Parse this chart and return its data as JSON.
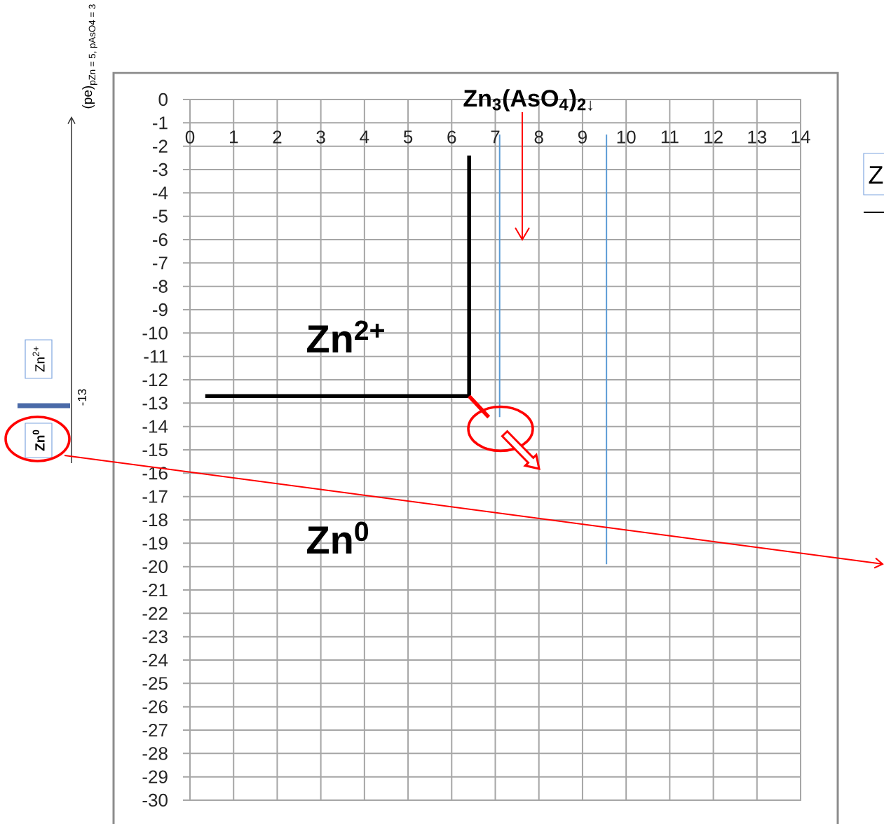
{
  "chart_data": {
    "type": "line",
    "xlim": [
      0,
      14
    ],
    "ylim": [
      -30,
      0
    ],
    "xticks": [
      0,
      1,
      2,
      3,
      4,
      5,
      6,
      7,
      8,
      9,
      10,
      11,
      12,
      13,
      14
    ],
    "yticks": [
      0,
      -1,
      -2,
      -3,
      -4,
      -5,
      -6,
      -7,
      -8,
      -9,
      -10,
      -11,
      -12,
      -13,
      -14,
      -15,
      -16,
      -17,
      -18,
      -19,
      -20,
      -21,
      -22,
      -23,
      -24,
      -25,
      -26,
      -27,
      -28,
      -29,
      -30
    ],
    "grid": true,
    "line_style": "solid",
    "series": [
      {
        "color": "#000000",
        "x": [
          0.35,
          6.4,
          6.4
        ],
        "values": [
          -12.7,
          -12.7,
          -2.4
        ]
      },
      {
        "color": "#ff0000",
        "x": [
          6.4,
          6.85
        ],
        "values": [
          -12.7,
          -13.6
        ]
      },
      {
        "color": "#5b9bd5",
        "x": [
          7.1,
          7.1
        ],
        "values": [
          -1.5,
          -13.6
        ]
      },
      {
        "color": "#5b9bd5",
        "x": [
          9.55,
          9.55
        ],
        "values": [
          -1.5,
          -19.9
        ]
      }
    ],
    "annotations": [
      "\\text{(pe)}_{\\text{pZn = 5, pAsO4 = 3}}",
      "Zn$_{3}$(AsO$_{4}$)$_{2↓}$",
      "Z",
      "Zn$^{2+}$",
      "Zn$^{2+}$",
      "-13",
      "Zn$^{0}$",
      "Zn$^{0}$"
    ]
  }
}
